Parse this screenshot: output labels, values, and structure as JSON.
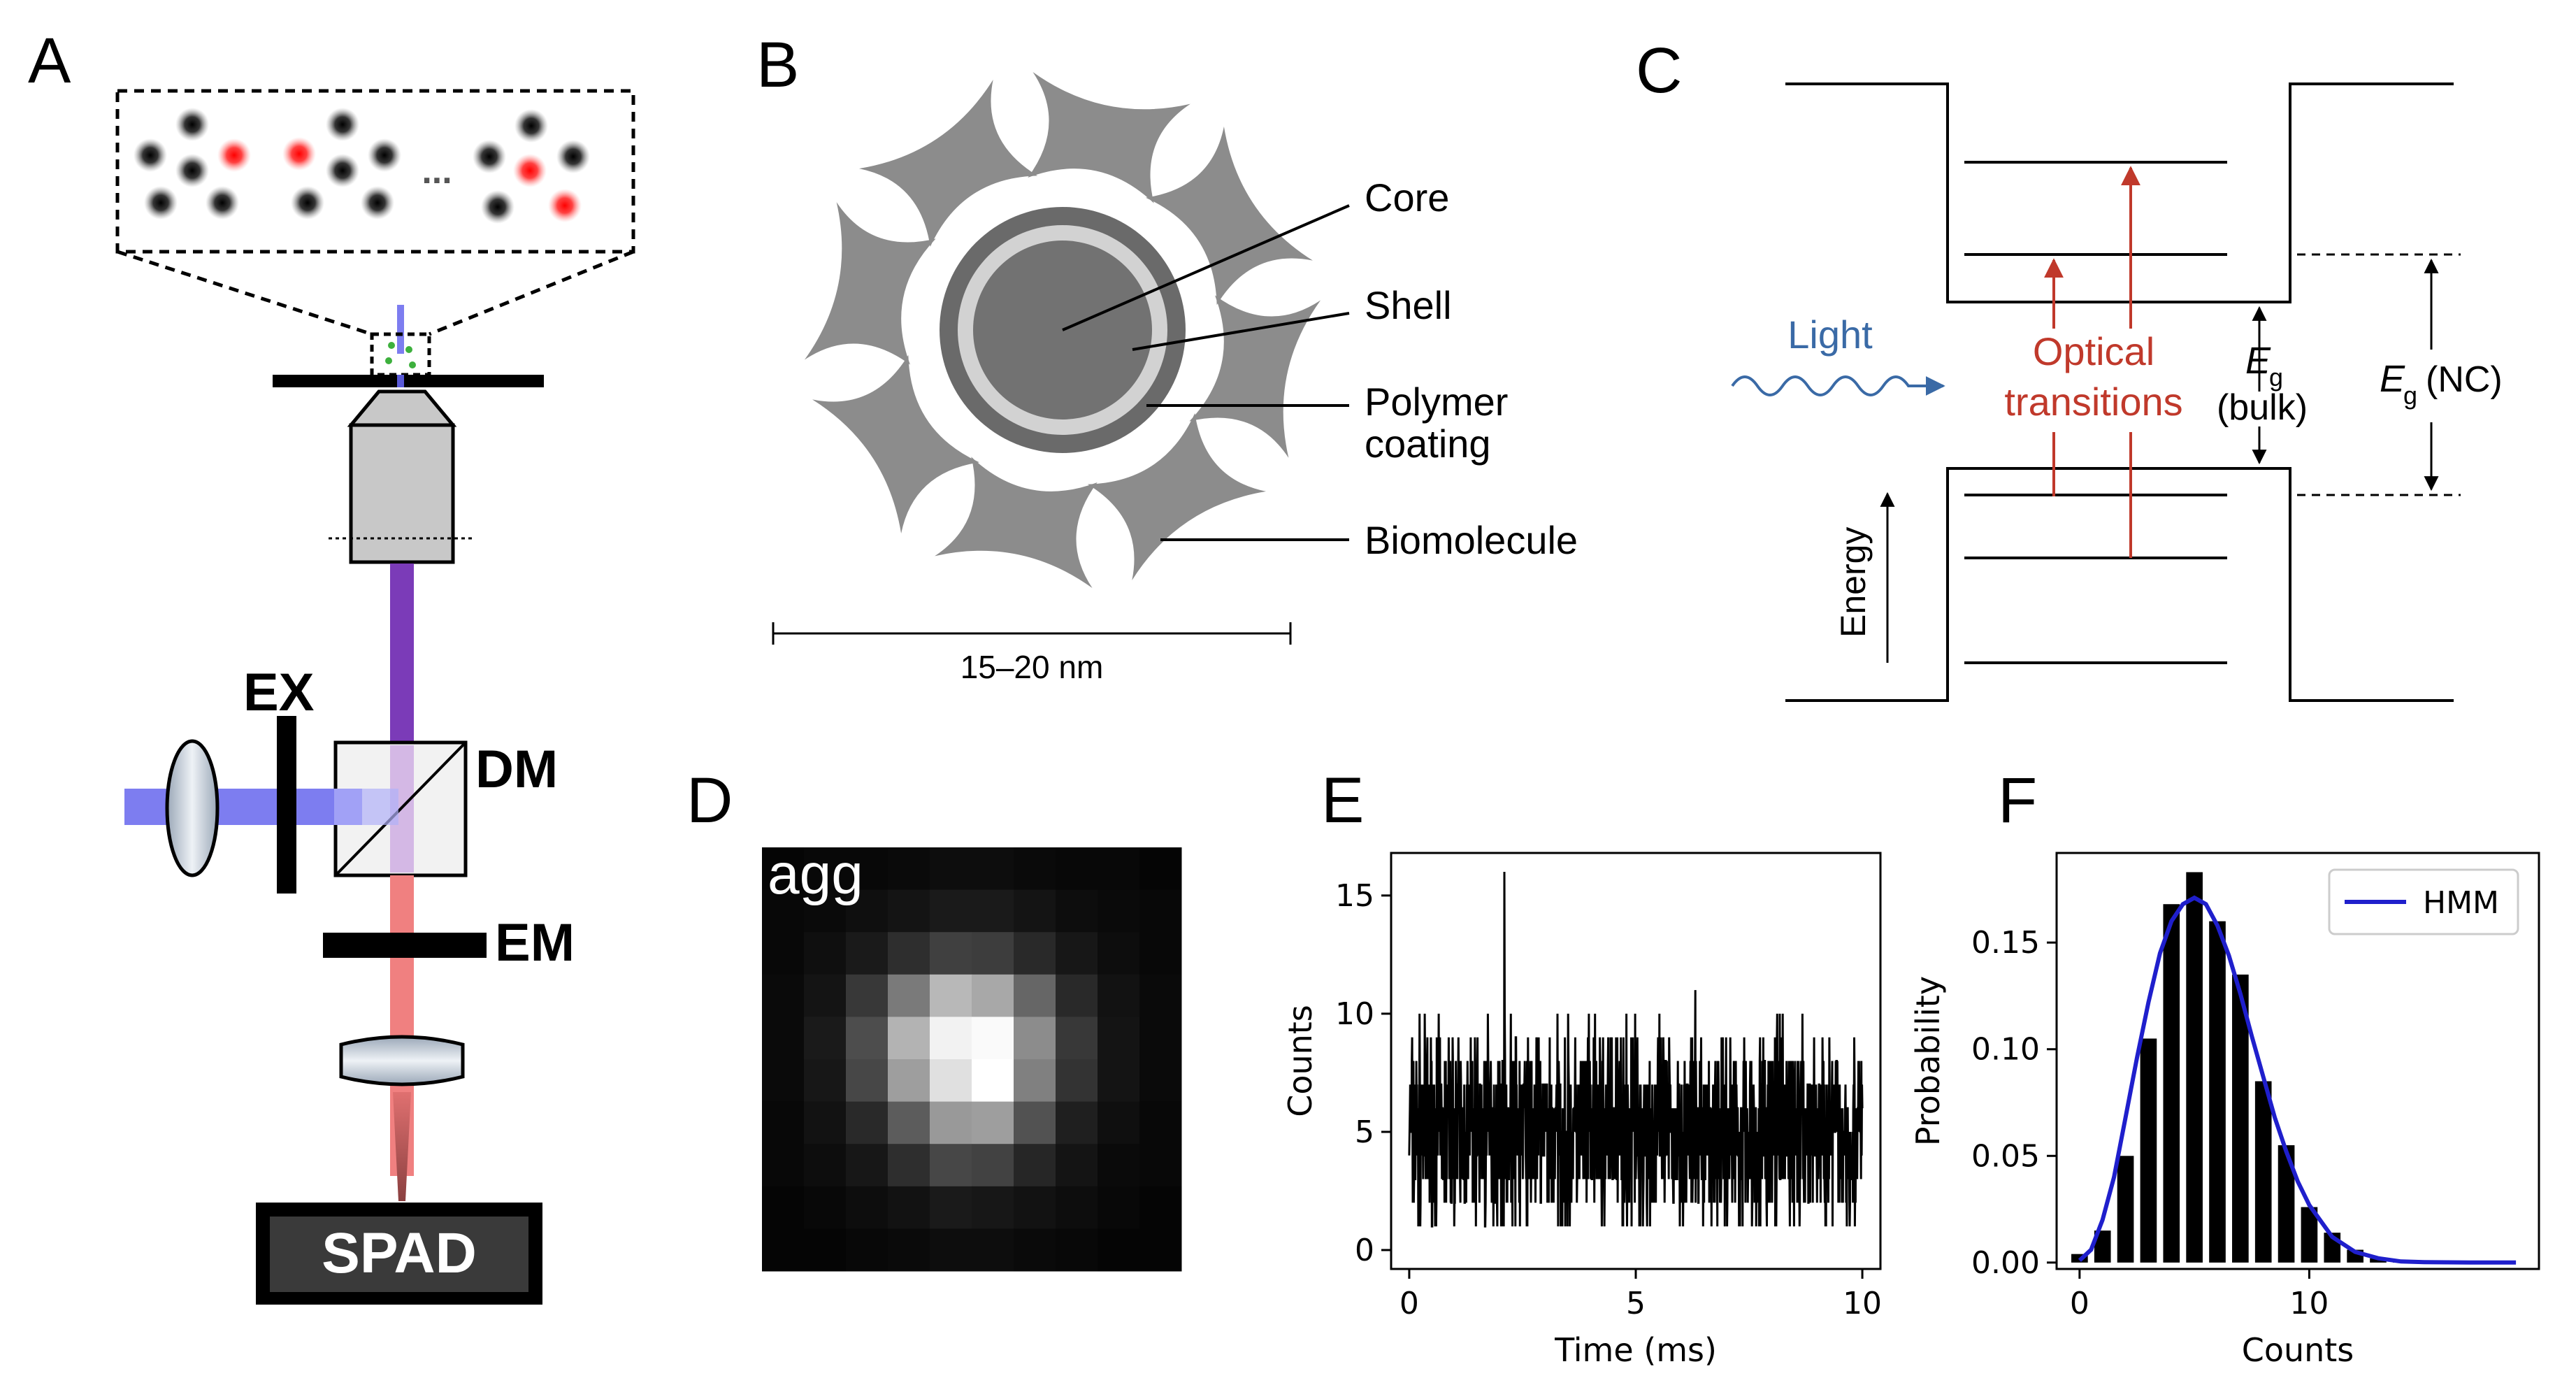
{
  "panels": {
    "a": {
      "letter": "A",
      "ellipsis": "...",
      "labels": {
        "ex": "EX",
        "dm": "DM",
        "em": "EM",
        "spad": "SPAD"
      }
    },
    "b": {
      "letter": "B",
      "labels": {
        "core": "Core",
        "shell": "Shell",
        "polymer_line1": "Polymer",
        "polymer_line2": "coating",
        "biomolecule": "Biomolecule",
        "scale": "15–20 nm"
      }
    },
    "c": {
      "letter": "C",
      "labels": {
        "light": "Light",
        "optical_line1": "Optical",
        "optical_line2": "transitions",
        "eg": "E",
        "eg_sub": "g",
        "bulk": "(bulk)",
        "nc": "(NC)",
        "energy": "Energy"
      },
      "colors": {
        "light": "#3a6aa6",
        "optical": "#c0392b"
      }
    },
    "d": {
      "letter": "D",
      "label": "agg",
      "grid_size": 10,
      "intensity": [
        [
          0.02,
          0.03,
          0.03,
          0.04,
          0.05,
          0.05,
          0.04,
          0.03,
          0.03,
          0.02
        ],
        [
          0.03,
          0.04,
          0.06,
          0.08,
          0.1,
          0.1,
          0.08,
          0.05,
          0.04,
          0.03
        ],
        [
          0.03,
          0.06,
          0.1,
          0.18,
          0.25,
          0.24,
          0.16,
          0.09,
          0.05,
          0.03
        ],
        [
          0.04,
          0.08,
          0.22,
          0.48,
          0.72,
          0.66,
          0.4,
          0.16,
          0.07,
          0.04
        ],
        [
          0.04,
          0.1,
          0.3,
          0.7,
          0.95,
          0.98,
          0.55,
          0.22,
          0.08,
          0.04
        ],
        [
          0.04,
          0.09,
          0.28,
          0.62,
          0.88,
          1.0,
          0.5,
          0.2,
          0.08,
          0.04
        ],
        [
          0.03,
          0.07,
          0.16,
          0.36,
          0.6,
          0.62,
          0.32,
          0.12,
          0.06,
          0.03
        ],
        [
          0.03,
          0.05,
          0.09,
          0.18,
          0.28,
          0.26,
          0.15,
          0.08,
          0.04,
          0.03
        ],
        [
          0.02,
          0.03,
          0.05,
          0.07,
          0.1,
          0.09,
          0.07,
          0.05,
          0.03,
          0.02
        ],
        [
          0.02,
          0.02,
          0.03,
          0.04,
          0.05,
          0.05,
          0.04,
          0.03,
          0.02,
          0.02
        ]
      ]
    },
    "e": {
      "letter": "E"
    },
    "f": {
      "letter": "F"
    }
  },
  "chart_data": [
    {
      "type": "line",
      "xlabel": "Time (ms)",
      "ylabel": "Counts",
      "xlim": [
        -0.4,
        10.4
      ],
      "ylim": [
        -0.8,
        16.8
      ],
      "xticks": [
        0,
        5,
        10
      ],
      "yticks": [
        0,
        5,
        10,
        15
      ],
      "series_color": "#000000",
      "trace_range": [
        1,
        13
      ],
      "trace_mean": 5,
      "trace_max": 16,
      "trace_max_at": 2.1
    },
    {
      "type": "bar",
      "xlabel": "Counts",
      "ylabel": "Probability",
      "xlim": [
        -1,
        20
      ],
      "ylim": [
        -0.003,
        0.192
      ],
      "xticks": [
        0,
        10
      ],
      "yticks": [
        0.0,
        0.05,
        0.1,
        0.15
      ],
      "ytick_labels": [
        "0.00",
        "0.05",
        "0.10",
        "0.15"
      ],
      "bar_color": "#000000",
      "bars": {
        "x": [
          0,
          1,
          2,
          3,
          4,
          5,
          6,
          7,
          8,
          9,
          10,
          11,
          12,
          13,
          14,
          15
        ],
        "values": [
          0.004,
          0.015,
          0.05,
          0.105,
          0.168,
          0.183,
          0.16,
          0.135,
          0.085,
          0.055,
          0.026,
          0.014,
          0.006,
          0.002,
          0.001,
          0.0
        ]
      },
      "series": [
        {
          "name": "HMM",
          "color": "#1f1fcc",
          "x": [
            0,
            0.5,
            1,
            1.5,
            2,
            2.5,
            3,
            3.5,
            4,
            4.5,
            5,
            5.5,
            6,
            6.5,
            7,
            7.5,
            8,
            8.5,
            9,
            9.5,
            10,
            11,
            12,
            13,
            14,
            15,
            16,
            17,
            18,
            19
          ],
          "y": [
            0.001,
            0.006,
            0.02,
            0.04,
            0.068,
            0.096,
            0.122,
            0.145,
            0.16,
            0.168,
            0.171,
            0.168,
            0.158,
            0.144,
            0.126,
            0.106,
            0.087,
            0.068,
            0.052,
            0.038,
            0.027,
            0.012,
            0.005,
            0.002,
            0.0005,
            0.0002,
            0.0001,
            0,
            0,
            0
          ]
        }
      ],
      "legend": "top-right"
    }
  ]
}
